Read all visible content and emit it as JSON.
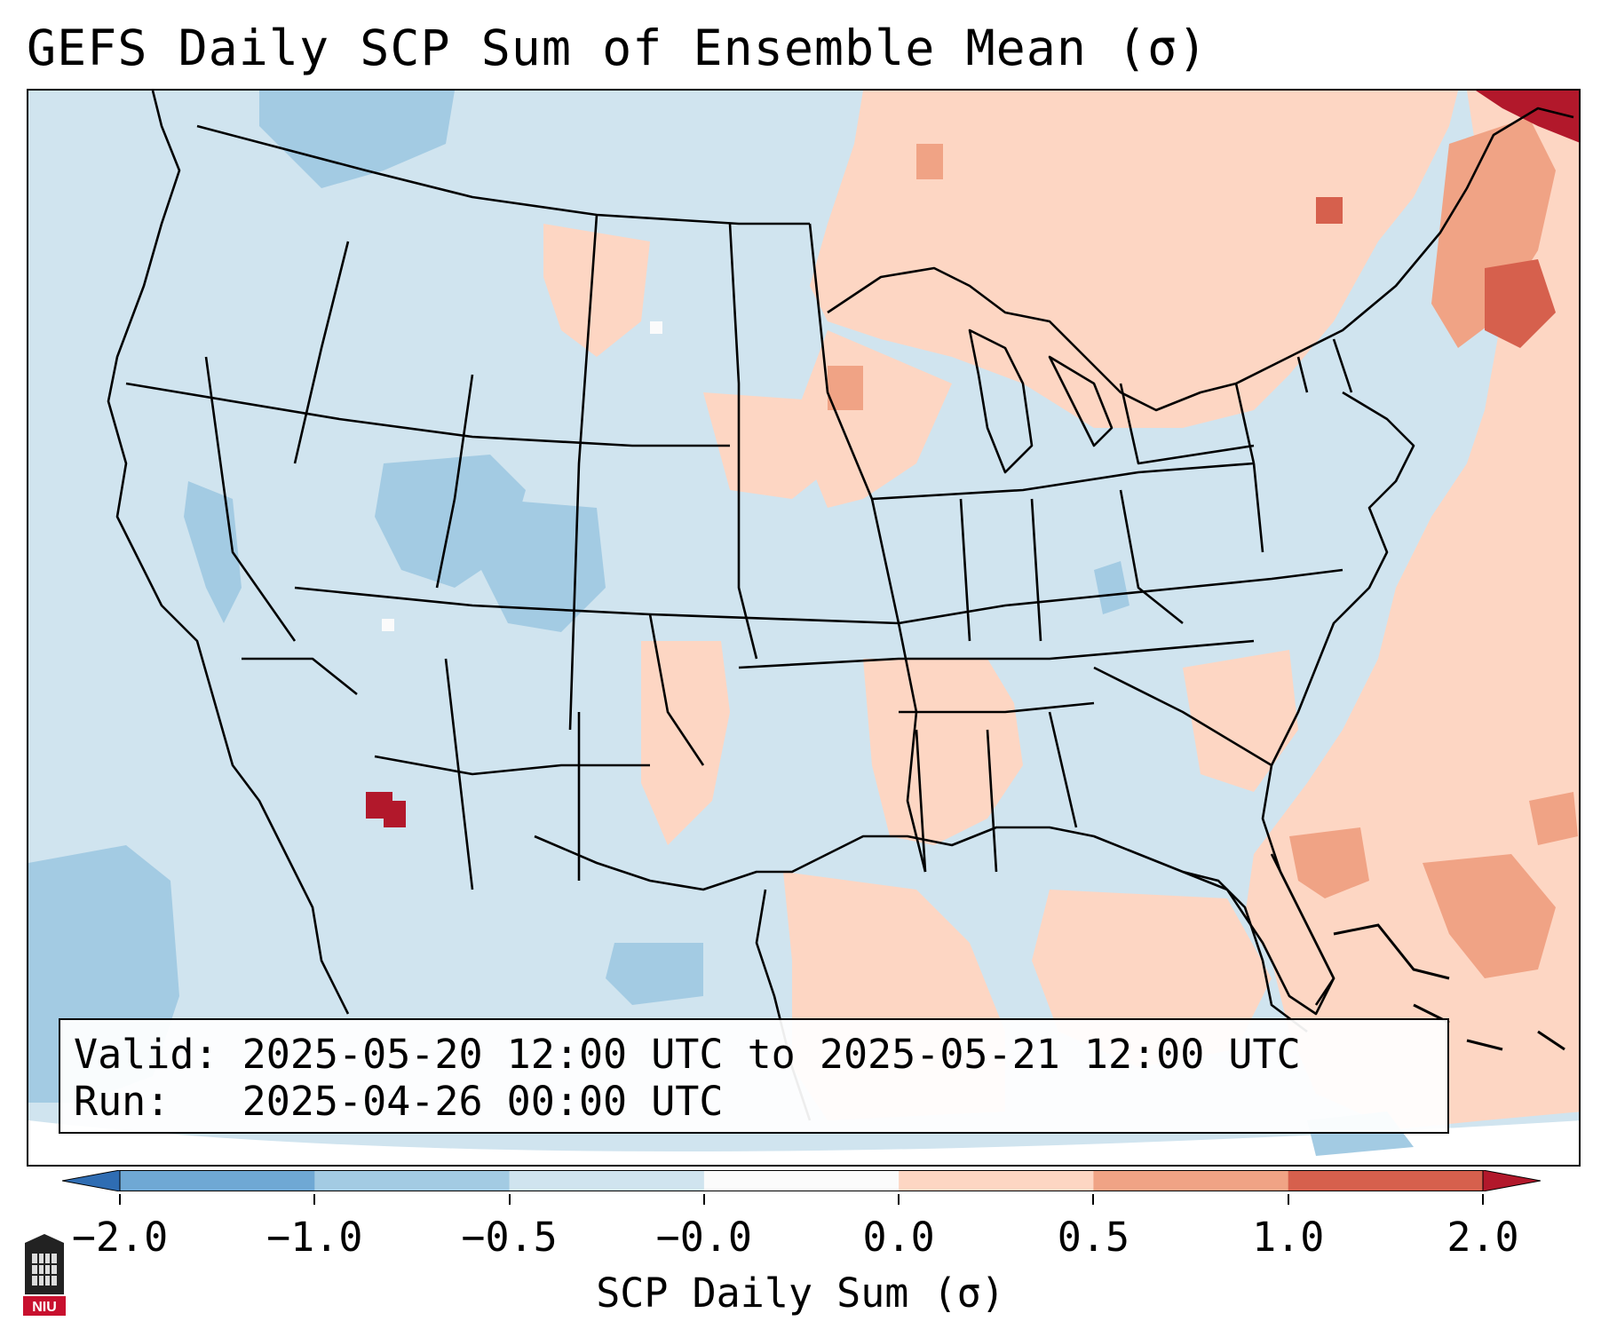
{
  "title": "GEFS Daily SCP Sum of Ensemble Mean (σ)",
  "info": {
    "valid": "Valid: 2025-05-20 12:00 UTC to 2025-05-21 12:00 UTC",
    "run": "Run:   2025-04-26 00:00 UTC"
  },
  "colorbar": {
    "label": "SCP Daily Sum (σ)",
    "ticks": [
      "−2.0",
      "−1.0",
      "−0.5",
      "−0.0",
      "0.0",
      "0.5",
      "1.0",
      "2.0"
    ],
    "colors": [
      "#2f6db3",
      "#6fa8d4",
      "#a3cbe3",
      "#d0e4ef",
      "#fbfbfb",
      "#fdd6c3",
      "#f0a385",
      "#d6604d",
      "#b2182b"
    ],
    "extend": "both"
  },
  "logo_text": "NIU",
  "map": {
    "region": "CONUS",
    "background_value_color": "#d0e4ef"
  }
}
